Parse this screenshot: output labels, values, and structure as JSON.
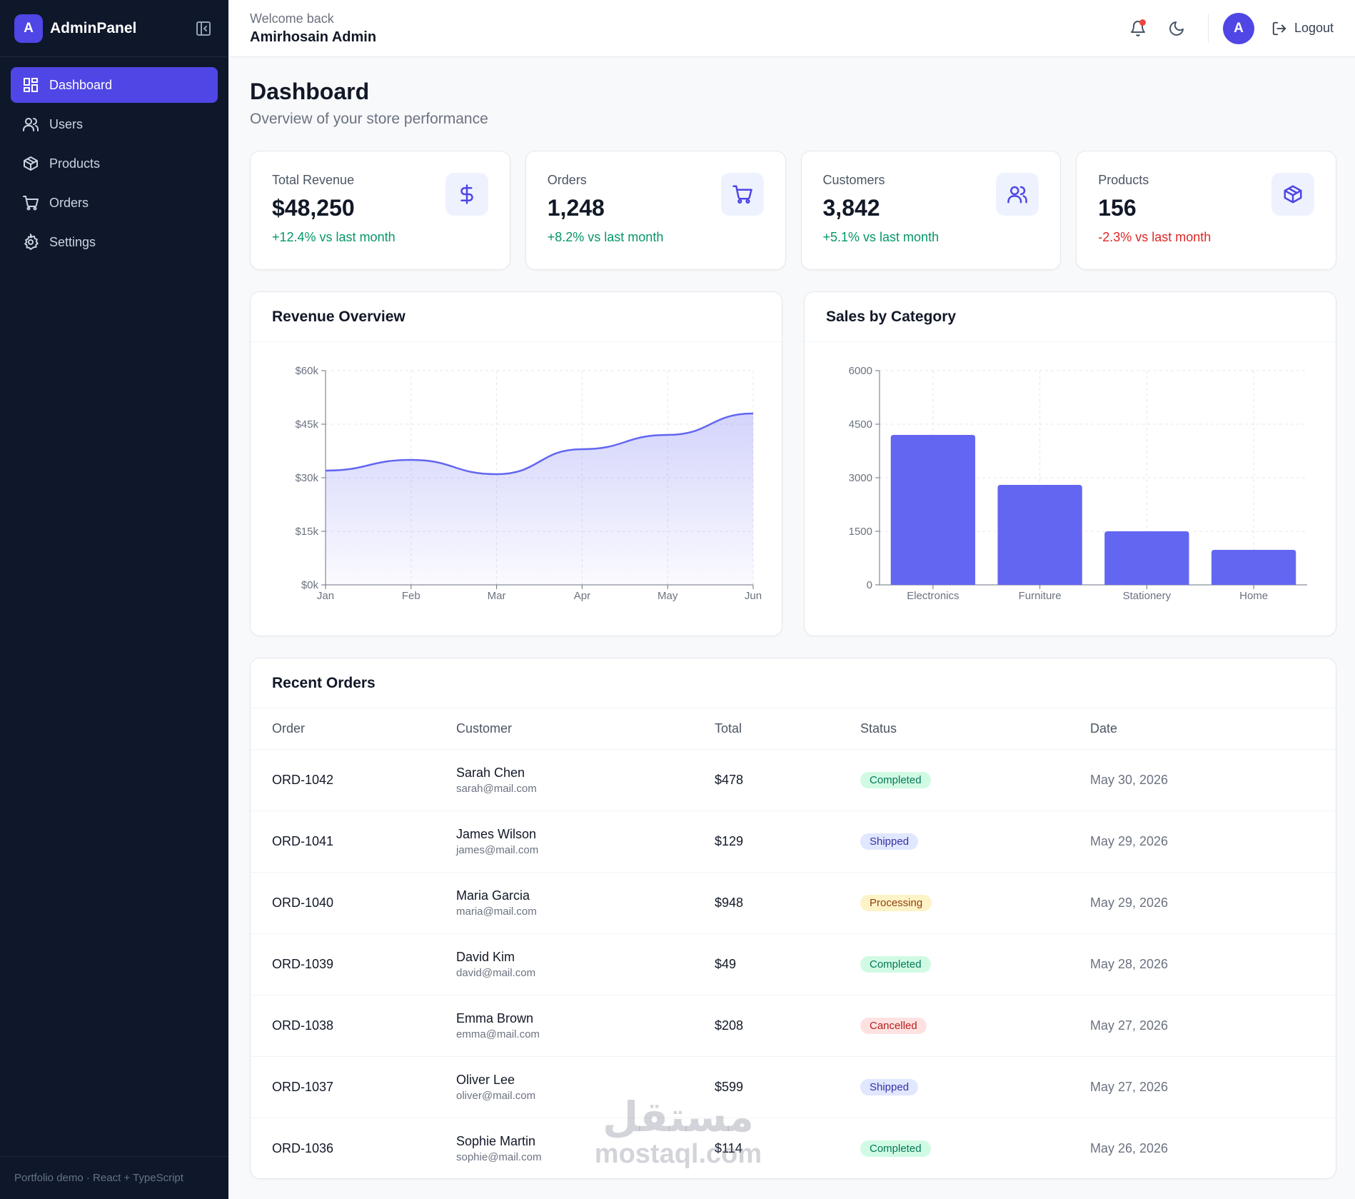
{
  "brand": {
    "logo_letter": "A",
    "name": "AdminPanel"
  },
  "sidebar": {
    "items": [
      {
        "label": "Dashboard",
        "icon": "dashboard-icon",
        "active": true
      },
      {
        "label": "Users",
        "icon": "users-icon",
        "active": false
      },
      {
        "label": "Products",
        "icon": "box-icon",
        "active": false
      },
      {
        "label": "Orders",
        "icon": "cart-icon",
        "active": false
      },
      {
        "label": "Settings",
        "icon": "gear-icon",
        "active": false
      }
    ],
    "footer": "Portfolio demo · React + TypeScript"
  },
  "header": {
    "welcome": "Welcome back",
    "user_name": "Amirhosain Admin",
    "avatar_letter": "A",
    "logout_label": "Logout"
  },
  "page": {
    "title": "Dashboard",
    "subtitle": "Overview of your store performance"
  },
  "stats": [
    {
      "label": "Total Revenue",
      "value": "$48,250",
      "change": "+12.4% vs last month",
      "trend": "up",
      "icon": "dollar-icon"
    },
    {
      "label": "Orders",
      "value": "1,248",
      "change": "+8.2% vs last month",
      "trend": "up",
      "icon": "cart-icon"
    },
    {
      "label": "Customers",
      "value": "3,842",
      "change": "+5.1% vs last month",
      "trend": "up",
      "icon": "users-icon"
    },
    {
      "label": "Products",
      "value": "156",
      "change": "-2.3% vs last month",
      "trend": "down",
      "icon": "box-icon"
    }
  ],
  "colors": {
    "accent": "#4f46e5",
    "chart": "#6366f1",
    "sidebar_bg": "#0f172a",
    "up": "#059669",
    "down": "#dc2626"
  },
  "chart_data": [
    {
      "type": "area",
      "title": "Revenue Overview",
      "x": [
        "Jan",
        "Feb",
        "Mar",
        "Apr",
        "May",
        "Jun"
      ],
      "values": [
        32000,
        35000,
        31000,
        38000,
        42000,
        48000
      ],
      "yticks": [
        "$0k",
        "$15k",
        "$30k",
        "$45k",
        "$60k"
      ],
      "ylim": [
        0,
        60000
      ],
      "grid": true
    },
    {
      "type": "bar",
      "title": "Sales by Category",
      "categories": [
        "Electronics",
        "Furniture",
        "Stationery",
        "Home"
      ],
      "values": [
        4200,
        2800,
        1500,
        980
      ],
      "yticks": [
        "0",
        "1500",
        "3000",
        "4500",
        "6000"
      ],
      "ylim": [
        0,
        6000
      ],
      "grid": true
    }
  ],
  "orders": {
    "title": "Recent Orders",
    "columns": [
      "Order",
      "Customer",
      "Total",
      "Status",
      "Date"
    ],
    "rows": [
      {
        "id": "ORD-1042",
        "name": "Sarah Chen",
        "email": "sarah@mail.com",
        "total": "$478",
        "status": "Completed",
        "date": "May 30, 2026"
      },
      {
        "id": "ORD-1041",
        "name": "James Wilson",
        "email": "james@mail.com",
        "total": "$129",
        "status": "Shipped",
        "date": "May 29, 2026"
      },
      {
        "id": "ORD-1040",
        "name": "Maria Garcia",
        "email": "maria@mail.com",
        "total": "$948",
        "status": "Processing",
        "date": "May 29, 2026"
      },
      {
        "id": "ORD-1039",
        "name": "David Kim",
        "email": "david@mail.com",
        "total": "$49",
        "status": "Completed",
        "date": "May 28, 2026"
      },
      {
        "id": "ORD-1038",
        "name": "Emma Brown",
        "email": "emma@mail.com",
        "total": "$208",
        "status": "Cancelled",
        "date": "May 27, 2026"
      },
      {
        "id": "ORD-1037",
        "name": "Oliver Lee",
        "email": "oliver@mail.com",
        "total": "$599",
        "status": "Shipped",
        "date": "May 27, 2026"
      },
      {
        "id": "ORD-1036",
        "name": "Sophie Martin",
        "email": "sophie@mail.com",
        "total": "$114",
        "status": "Completed",
        "date": "May 26, 2026"
      }
    ]
  },
  "watermark": {
    "arabic": "مستقل",
    "latin": "mostaql.com"
  }
}
